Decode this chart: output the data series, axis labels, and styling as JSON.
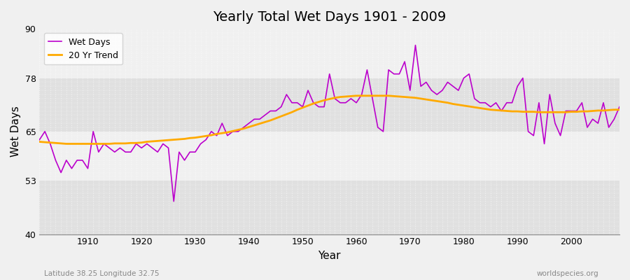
{
  "title": "Yearly Total Wet Days 1901 - 2009",
  "xlabel": "Year",
  "ylabel": "Wet Days",
  "ylim": [
    40,
    90
  ],
  "xlim": [
    1901,
    2009
  ],
  "yticks": [
    40,
    53,
    65,
    78,
    90
  ],
  "xticks": [
    1910,
    1920,
    1930,
    1940,
    1950,
    1960,
    1970,
    1980,
    1990,
    2000
  ],
  "bg_color": "#f0f0f0",
  "plot_bg_color_light": "#f0f0f0",
  "plot_bg_color_dark": "#e0e0e0",
  "wet_days_color": "#bb00cc",
  "trend_color": "#ffaa00",
  "subtitle_left": "Latitude 38.25 Longitude 32.75",
  "subtitle_right": "worldspecies.org",
  "wet_days": [
    63,
    65,
    62,
    58,
    55,
    58,
    56,
    58,
    58,
    56,
    65,
    60,
    62,
    61,
    60,
    61,
    60,
    60,
    62,
    61,
    62,
    61,
    60,
    62,
    61,
    48,
    60,
    58,
    60,
    60,
    62,
    63,
    65,
    64,
    67,
    64,
    65,
    65,
    66,
    67,
    68,
    68,
    69,
    70,
    70,
    71,
    74,
    72,
    72,
    71,
    75,
    72,
    71,
    71,
    79,
    73,
    72,
    72,
    73,
    72,
    74,
    80,
    73,
    66,
    65,
    80,
    79,
    79,
    82,
    75,
    86,
    76,
    77,
    75,
    74,
    75,
    77,
    76,
    75,
    78,
    79,
    73,
    72,
    72,
    71,
    72,
    70,
    72,
    72,
    76,
    78,
    65,
    64,
    72,
    62,
    74,
    67,
    64,
    70,
    70,
    70,
    72,
    66,
    68,
    67,
    72,
    66,
    68,
    71
  ],
  "trend": [
    62.5,
    62.4,
    62.3,
    62.2,
    62.1,
    62.0,
    62.0,
    62.0,
    62.0,
    62.0,
    62.0,
    62.0,
    62.0,
    62.0,
    62.1,
    62.1,
    62.1,
    62.2,
    62.2,
    62.3,
    62.5,
    62.6,
    62.7,
    62.8,
    62.9,
    63.0,
    63.1,
    63.2,
    63.4,
    63.5,
    63.7,
    63.9,
    64.1,
    64.4,
    64.6,
    64.8,
    65.1,
    65.4,
    65.7,
    66.1,
    66.5,
    66.9,
    67.3,
    67.7,
    68.2,
    68.7,
    69.2,
    69.7,
    70.3,
    70.8,
    71.3,
    71.8,
    72.2,
    72.6,
    72.9,
    73.2,
    73.4,
    73.5,
    73.6,
    73.7,
    73.7,
    73.7,
    73.7,
    73.7,
    73.7,
    73.7,
    73.6,
    73.5,
    73.4,
    73.3,
    73.2,
    73.0,
    72.8,
    72.6,
    72.4,
    72.2,
    72.0,
    71.7,
    71.5,
    71.3,
    71.1,
    70.9,
    70.7,
    70.5,
    70.3,
    70.2,
    70.1,
    70.0,
    69.9,
    69.9,
    69.8,
    69.8,
    69.8,
    69.7,
    69.7,
    69.7,
    69.7,
    69.7,
    69.7,
    69.8,
    69.8,
    69.9,
    69.9,
    70.0,
    70.1,
    70.1,
    70.2,
    70.3,
    70.3
  ]
}
